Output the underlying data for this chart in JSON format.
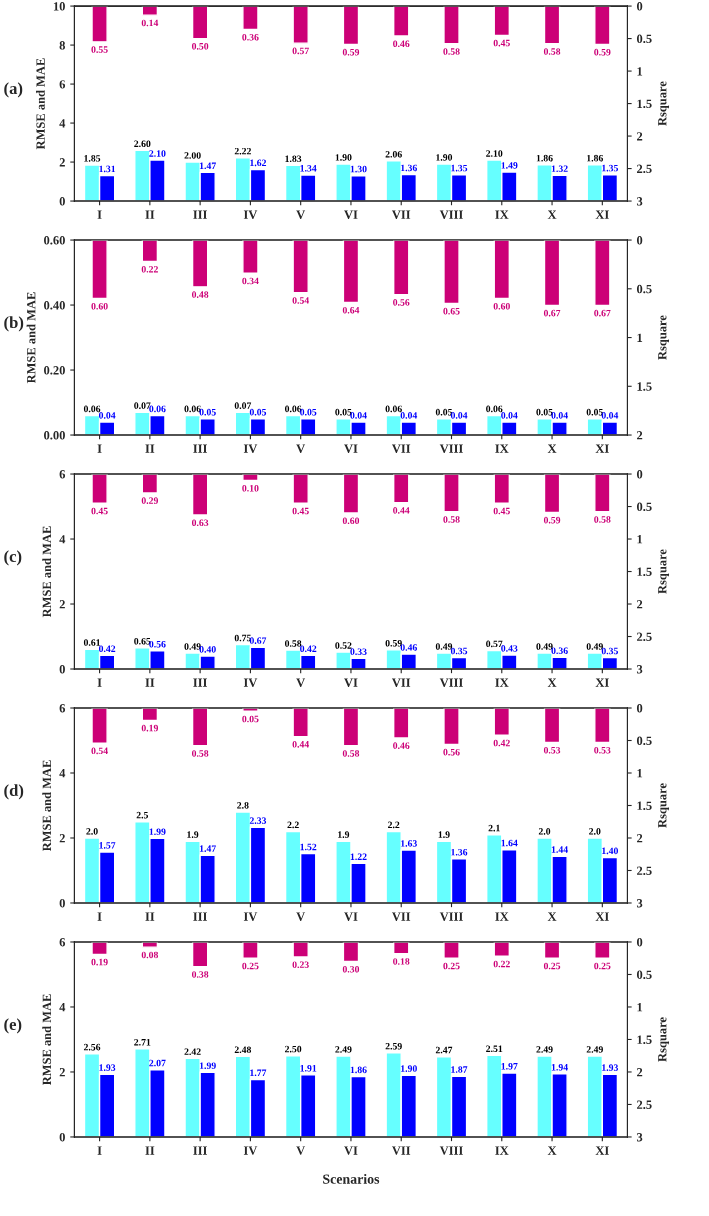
{
  "chart_data": [
    {
      "type": "bar",
      "annotations": [
        "(a)"
      ],
      "ylabel": "RMSE and MAE",
      "y2label": "Rsquare",
      "categories": [
        "I",
        "II",
        "III",
        "IV",
        "V",
        "VI",
        "VII",
        "VIII",
        "IX",
        "X",
        "XI"
      ],
      "ylim": [
        0,
        10
      ],
      "yticks": [
        0,
        2,
        4,
        6,
        8,
        10
      ],
      "y2lim": [
        3,
        0
      ],
      "y2ticks": [
        0,
        0.5,
        1,
        1.5,
        2,
        2.5,
        3
      ],
      "series": [
        {
          "color": "#66ffff",
          "values": [
            1.85,
            2.6,
            2.0,
            2.22,
            1.83,
            1.9,
            2.06,
            1.9,
            2.1,
            1.86,
            1.86
          ],
          "value_labels": [
            "1.85",
            "2.60",
            "2.00",
            "2.22",
            "1.83",
            "1.90",
            "2.06",
            "1.90",
            "2.10",
            "1.86",
            "1.86"
          ]
        },
        {
          "color": "#0000ff",
          "values": [
            1.31,
            2.1,
            1.47,
            1.62,
            1.34,
            1.3,
            1.36,
            1.35,
            1.49,
            1.32,
            1.35
          ],
          "value_labels": [
            "1.31",
            "2.10",
            "1.47",
            "1.62",
            "1.34",
            "1.30",
            "1.36",
            "1.35",
            "1.49",
            "1.32",
            "1.35"
          ]
        },
        {
          "color": "#cc0077",
          "axis": "y2",
          "values": [
            0.55,
            0.14,
            0.5,
            0.36,
            0.57,
            0.59,
            0.46,
            0.58,
            0.45,
            0.58,
            0.59
          ],
          "value_labels": [
            "0.55",
            "0.14",
            "0.50",
            "0.36",
            "0.57",
            "0.59",
            "0.46",
            "0.58",
            "0.45",
            "0.58",
            "0.59"
          ]
        }
      ]
    },
    {
      "type": "bar",
      "annotations": [
        "(b)"
      ],
      "ylabel": "RMSE and MAE",
      "y2label": "Rsquare",
      "categories": [
        "I",
        "II",
        "III",
        "IV",
        "V",
        "VI",
        "VII",
        "VIII",
        "IX",
        "X",
        "XI"
      ],
      "ylim": [
        0,
        0.6
      ],
      "yticks": [
        {
          "value": 0,
          "label": "0.00"
        },
        {
          "value": 0.2,
          "label": "0.20"
        },
        {
          "value": 0.4,
          "label": "0.40"
        },
        {
          "value": 0.6,
          "label": "0.60"
        }
      ],
      "y2lim": [
        2,
        0
      ],
      "y2ticks": [
        0,
        0.5,
        1,
        1.5,
        2
      ],
      "series": [
        {
          "color": "#66ffff",
          "values": [
            0.06,
            0.07,
            0.06,
            0.07,
            0.06,
            0.05,
            0.06,
            0.05,
            0.06,
            0.05,
            0.05
          ],
          "value_labels": [
            "0.06",
            "0.07",
            "0.06",
            "0.07",
            "0.06",
            "0.05",
            "0.06",
            "0.05",
            "0.06",
            "0.05",
            "0.05"
          ]
        },
        {
          "color": "#0000ff",
          "values": [
            0.04,
            0.06,
            0.05,
            0.05,
            0.05,
            0.04,
            0.04,
            0.04,
            0.04,
            0.04,
            0.04
          ],
          "value_labels": [
            "0.04",
            "0.06",
            "0.05",
            "0.05",
            "0.05",
            "0.04",
            "0.04",
            "0.04",
            "0.04",
            "0.04",
            "0.04"
          ]
        },
        {
          "color": "#cc0077",
          "axis": "y2",
          "values": [
            0.6,
            0.22,
            0.48,
            0.34,
            0.54,
            0.64,
            0.56,
            0.65,
            0.6,
            0.67,
            0.67
          ],
          "value_labels": [
            "0.60",
            "0.22",
            "0.48",
            "0.34",
            "0.54",
            "0.64",
            "0.56",
            "0.65",
            "0.60",
            "0.67",
            "0.67"
          ]
        }
      ]
    },
    {
      "type": "bar",
      "annotations": [
        "(c)"
      ],
      "ylabel": "RMSE and MAE",
      "y2label": "Rsquare",
      "categories": [
        "I",
        "II",
        "III",
        "IV",
        "V",
        "VI",
        "VII",
        "VIII",
        "IX",
        "X",
        "XI"
      ],
      "ylim": [
        0,
        6
      ],
      "yticks": [
        0,
        2,
        4,
        6
      ],
      "y2lim": [
        3,
        0
      ],
      "y2ticks": [
        0,
        0.5,
        1,
        1.5,
        2,
        2.5,
        3
      ],
      "series": [
        {
          "color": "#66ffff",
          "values": [
            0.61,
            0.65,
            0.49,
            0.75,
            0.58,
            0.52,
            0.59,
            0.49,
            0.57,
            0.49,
            0.49
          ],
          "value_labels": [
            "0.61",
            "0.65",
            "0.49",
            "0.75",
            "0.58",
            "0.52",
            "0.59",
            "0.49",
            "0.57",
            "0.49",
            "0.49"
          ]
        },
        {
          "color": "#0000ff",
          "values": [
            0.42,
            0.56,
            0.4,
            0.67,
            0.42,
            0.33,
            0.46,
            0.35,
            0.43,
            0.36,
            0.35
          ],
          "value_labels": [
            "0.42",
            "0.56",
            "0.40",
            "0.67",
            "0.42",
            "0.33",
            "0.46",
            "0.35",
            "0.43",
            "0.36",
            "0.35"
          ]
        },
        {
          "color": "#cc0077",
          "axis": "y2",
          "values": [
            0.45,
            0.29,
            0.63,
            0.1,
            0.45,
            0.6,
            0.44,
            0.58,
            0.45,
            0.59,
            0.58
          ],
          "value_labels": [
            "0.45",
            "0.29",
            "0.63",
            "0.10",
            "0.45",
            "0.60",
            "0.44",
            "0.58",
            "0.45",
            "0.59",
            "0.58"
          ]
        }
      ]
    },
    {
      "type": "bar",
      "annotations": [
        "(d)"
      ],
      "ylabel": "RMSE and MAE",
      "y2label": "Rsquare",
      "categories": [
        "I",
        "II",
        "III",
        "IV",
        "V",
        "VI",
        "VII",
        "VIII",
        "IX",
        "X",
        "XI"
      ],
      "ylim": [
        0,
        6
      ],
      "yticks": [
        0,
        2,
        4,
        6
      ],
      "y2lim": [
        3,
        0
      ],
      "y2ticks": [
        0,
        0.5,
        1,
        1.5,
        2,
        2.5,
        3
      ],
      "series": [
        {
          "color": "#66ffff",
          "values": [
            2.0,
            2.5,
            1.9,
            2.8,
            2.2,
            1.9,
            2.2,
            1.9,
            2.1,
            2.0,
            2.0
          ],
          "value_labels": [
            "2.0",
            "2.5",
            "1.9",
            "2.8",
            "2.2",
            "1.9",
            "2.2",
            "1.9",
            "2.1",
            "2.0",
            "2.0"
          ]
        },
        {
          "color": "#0000ff",
          "values": [
            1.57,
            1.99,
            1.47,
            2.33,
            1.52,
            1.22,
            1.63,
            1.36,
            1.64,
            1.44,
            1.4
          ],
          "value_labels": [
            "1.57",
            "1.99",
            "1.47",
            "2.33",
            "1.52",
            "1.22",
            "1.63",
            "1.36",
            "1.64",
            "1.44",
            "1.40"
          ]
        },
        {
          "color": "#cc0077",
          "axis": "y2",
          "values": [
            0.54,
            0.19,
            0.58,
            0.05,
            0.44,
            0.58,
            0.46,
            0.56,
            0.42,
            0.53,
            0.53
          ],
          "value_labels": [
            "0.54",
            "0.19",
            "0.58",
            "0.05",
            "0.44",
            "0.58",
            "0.46",
            "0.56",
            "0.42",
            "0.53",
            "0.53"
          ]
        }
      ]
    },
    {
      "type": "bar",
      "annotations": [
        "(e)"
      ],
      "ylabel": "RMSE and MAE",
      "y2label": "Rsquare",
      "xlabel": "Scenarios",
      "categories": [
        "I",
        "II",
        "III",
        "IV",
        "V",
        "VI",
        "VII",
        "VIII",
        "IX",
        "X",
        "XI"
      ],
      "ylim": [
        0,
        6
      ],
      "yticks": [
        0,
        2,
        4,
        6
      ],
      "y2lim": [
        3,
        0
      ],
      "y2ticks": [
        0,
        0.5,
        1,
        1.5,
        2,
        2.5,
        3
      ],
      "series": [
        {
          "color": "#66ffff",
          "values": [
            2.56,
            2.71,
            2.42,
            2.48,
            2.5,
            2.49,
            2.59,
            2.47,
            2.51,
            2.49,
            2.49
          ],
          "value_labels": [
            "2.56",
            "2.71",
            "2.42",
            "2.48",
            "2.50",
            "2.49",
            "2.59",
            "2.47",
            "2.51",
            "2.49",
            "2.49"
          ]
        },
        {
          "color": "#0000ff",
          "values": [
            1.93,
            2.07,
            1.99,
            1.77,
            1.91,
            1.86,
            1.9,
            1.87,
            1.97,
            1.94,
            1.93
          ],
          "value_labels": [
            "1.93",
            "2.07",
            "1.99",
            "1.77",
            "1.91",
            "1.86",
            "1.90",
            "1.87",
            "1.97",
            "1.94",
            "1.93"
          ]
        },
        {
          "color": "#cc0077",
          "axis": "y2",
          "values": [
            0.19,
            0.08,
            0.38,
            0.25,
            0.23,
            0.3,
            0.18,
            0.25,
            0.22,
            0.25,
            0.25
          ],
          "value_labels": [
            "0.19",
            "0.08",
            "0.38",
            "0.25",
            "0.23",
            "0.30",
            "0.18",
            "0.25",
            "0.22",
            "0.25",
            "0.25"
          ]
        }
      ]
    }
  ]
}
